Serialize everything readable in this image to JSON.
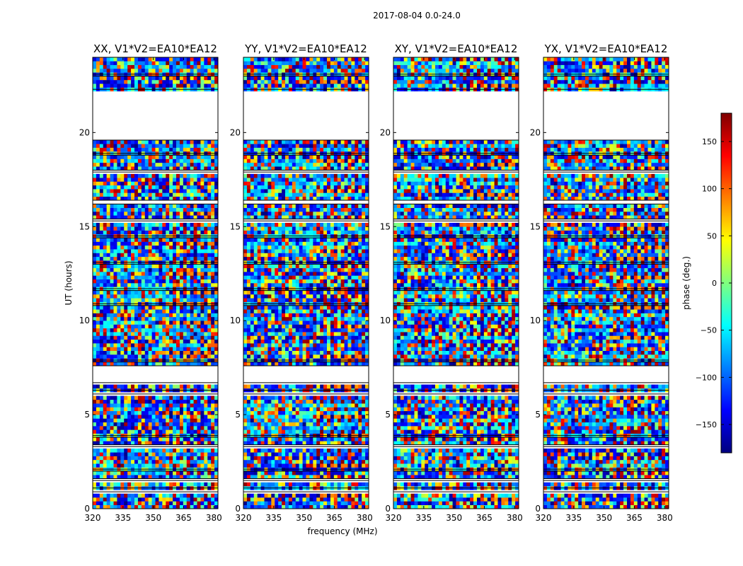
{
  "chart_data": {
    "type": "heatmap",
    "suptitle": "2017-08-04 0.0-24.0",
    "xlabel": "frequency (MHz)",
    "ylabel": "UT (hours)",
    "xlim": [
      320,
      382
    ],
    "ylim": [
      0,
      24
    ],
    "x_ticks": [
      320,
      335,
      350,
      365,
      380
    ],
    "x_tick_labels": [
      "320",
      "335",
      "350",
      "365",
      "380"
    ],
    "y_ticks": [
      0,
      5,
      10,
      15,
      20
    ],
    "y_tick_labels": [
      "0",
      "5",
      "10",
      "15",
      "20"
    ],
    "panels": [
      {
        "title": "XX, V1*V2=EA10*EA12",
        "polarization": "XX",
        "baseline": "EA10*EA12"
      },
      {
        "title": "YY, V1*V2=EA10*EA12",
        "polarization": "YY",
        "baseline": "EA10*EA12"
      },
      {
        "title": "XY, V1*V2=EA10*EA12",
        "polarization": "XY",
        "baseline": "EA10*EA12"
      },
      {
        "title": "YX, V1*V2=EA10*EA12",
        "polarization": "YX",
        "baseline": "EA10*EA12"
      }
    ],
    "colorbar": {
      "label": "phase (deg.)",
      "colormap": "jet",
      "vmin": -180,
      "vmax": 180,
      "ticks": [
        150,
        100,
        50,
        0,
        -50,
        -100,
        -150
      ],
      "tick_labels": [
        "150",
        "100",
        "50",
        "0",
        "−50",
        "−100",
        "−150"
      ],
      "colors": [
        "#00007f",
        "#0000ff",
        "#007fff",
        "#00ffff",
        "#7fff7f",
        "#ffff00",
        "#ff7f00",
        "#ff0000",
        "#7f0000"
      ]
    },
    "blank_ut_ranges": [
      [
        0.9,
        1.1
      ],
      [
        1.5,
        1.6
      ],
      [
        2.0,
        2.1
      ],
      [
        3.3,
        3.4
      ],
      [
        3.8,
        3.9
      ],
      [
        6.1,
        6.3
      ],
      [
        6.7,
        7.6
      ],
      [
        7.8,
        7.9
      ],
      [
        10.8,
        10.9
      ],
      [
        11.6,
        11.7
      ],
      [
        13.0,
        13.1
      ],
      [
        14.4,
        14.5
      ],
      [
        15.3,
        15.4
      ],
      [
        16.2,
        16.4
      ],
      [
        17.9,
        18.0
      ],
      [
        18.8,
        18.9
      ],
      [
        19.6,
        22.3
      ],
      [
        23.0,
        23.1
      ]
    ],
    "data_note": "Phase vs frequency and UT; mostly random noise with fringe-striped segments at higher frequencies."
  }
}
